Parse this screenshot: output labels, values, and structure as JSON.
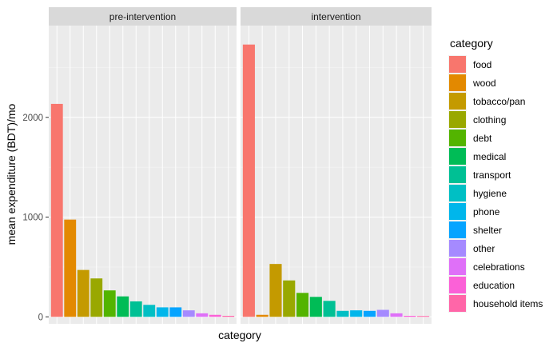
{
  "chart_data": {
    "type": "bar",
    "facets": [
      "pre-intervention",
      "intervention"
    ],
    "categories": [
      "food",
      "wood",
      "tobacco/pan",
      "clothing",
      "debt",
      "medical",
      "transport",
      "hygiene",
      "phone",
      "shelter",
      "other",
      "celebrations",
      "education",
      "household items"
    ],
    "colors": [
      "#F8766D",
      "#E38900",
      "#C49A00",
      "#99A800",
      "#53B400",
      "#00BC56",
      "#00C094",
      "#00BFC4",
      "#00B6EB",
      "#06A4FF",
      "#A58AFF",
      "#DF70F8",
      "#FB61D7",
      "#FF66A8"
    ],
    "series": [
      {
        "facet": "pre-intervention",
        "values": [
          2135,
          975,
          470,
          385,
          265,
          205,
          155,
          120,
          95,
          95,
          65,
          35,
          20,
          10
        ]
      },
      {
        "facet": "intervention",
        "values": [
          2730,
          20,
          530,
          365,
          240,
          200,
          160,
          60,
          65,
          60,
          70,
          35,
          10,
          8
        ]
      }
    ],
    "ylabel": "mean expenditure (BDT)/mo",
    "xlabel": "category",
    "ylim": [
      -70,
      2920
    ],
    "yticks": [
      0,
      1000,
      2000
    ],
    "ytick_labels": [
      "0",
      "1000",
      "2000"
    ],
    "grid": true,
    "legend_title": "category",
    "legend_position": "right"
  }
}
